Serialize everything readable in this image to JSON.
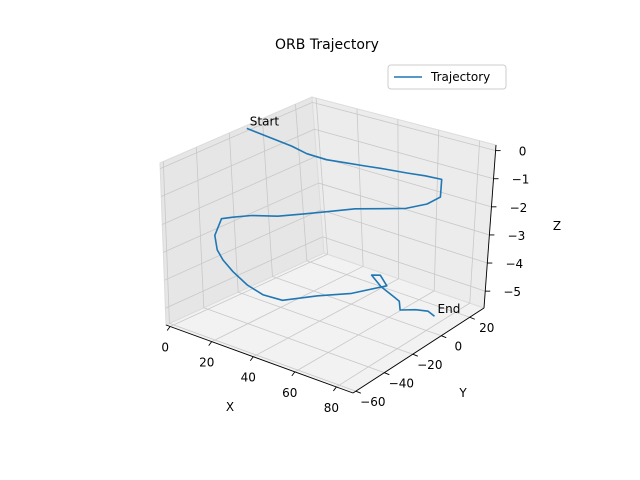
{
  "chart_data": {
    "type": "line",
    "projection": "3d",
    "title": "ORB Trajectory",
    "xlabel": "X",
    "ylabel": "Y",
    "zlabel": "Z",
    "xlim": [
      -2,
      88
    ],
    "ylim": [
      -62,
      30
    ],
    "zlim": [
      -5.6,
      0.2
    ],
    "x_ticks": [
      0,
      20,
      40,
      60,
      80
    ],
    "y_ticks": [
      -60,
      -40,
      -20,
      0,
      20
    ],
    "z_ticks": [
      0,
      -1,
      -2,
      -3,
      -4,
      -5
    ],
    "x_tick_labels": [
      "0",
      "20",
      "40",
      "60",
      "80"
    ],
    "y_tick_labels": [
      "−60",
      "−40",
      "−20",
      "0",
      "20"
    ],
    "z_tick_labels": [
      "0",
      "−1",
      "−2",
      "−3",
      "−4",
      "−5"
    ],
    "grid": true,
    "legend": "upper-right",
    "series": [
      {
        "name": "Trajectory",
        "color": "#1f77b4",
        "x": [
          0,
          10,
          14,
          22,
          30,
          38,
          46,
          54,
          60,
          66,
          68,
          66,
          60,
          52,
          44,
          36,
          28,
          20,
          12,
          6,
          2,
          0,
          6,
          12,
          20,
          30,
          40,
          50,
          58,
          64,
          68,
          60,
          54,
          62,
          70,
          76,
          78,
          80,
          82,
          84
        ],
        "y": [
          -12,
          2,
          6,
          8,
          10,
          12,
          14,
          18,
          22,
          25,
          22,
          16,
          10,
          4,
          -2,
          -8,
          -14,
          -20,
          -26,
          -30,
          -32,
          -34,
          -40,
          -44,
          -48,
          -52,
          -55,
          -56,
          -44,
          -30,
          -12,
          -6,
          -4,
          -8,
          -10,
          -14,
          -16,
          -8,
          -2,
          0
        ],
        "z": [
          0.2,
          -0.6,
          -0.9,
          -1.0,
          -1.0,
          -1.0,
          -1.0,
          -1.1,
          -1.2,
          -1.3,
          -1.8,
          -1.9,
          -2.0,
          -2.0,
          -2.0,
          -2.1,
          -2.2,
          -2.3,
          -2.3,
          -2.4,
          -2.5,
          -3.1,
          -3.3,
          -3.4,
          -3.5,
          -3.6,
          -3.6,
          -3.5,
          -3.5,
          -3.7,
          -3.9,
          -3.9,
          -4.1,
          -4.2,
          -4.3,
          -4.2,
          -4.4,
          -4.6,
          -4.8,
          -5.0
        ]
      }
    ],
    "annotations": [
      {
        "text": "Start",
        "x": 0,
        "y": -12,
        "z": 0.2
      },
      {
        "text": "End",
        "x": 84,
        "y": 0,
        "z": -5.0
      }
    ]
  }
}
